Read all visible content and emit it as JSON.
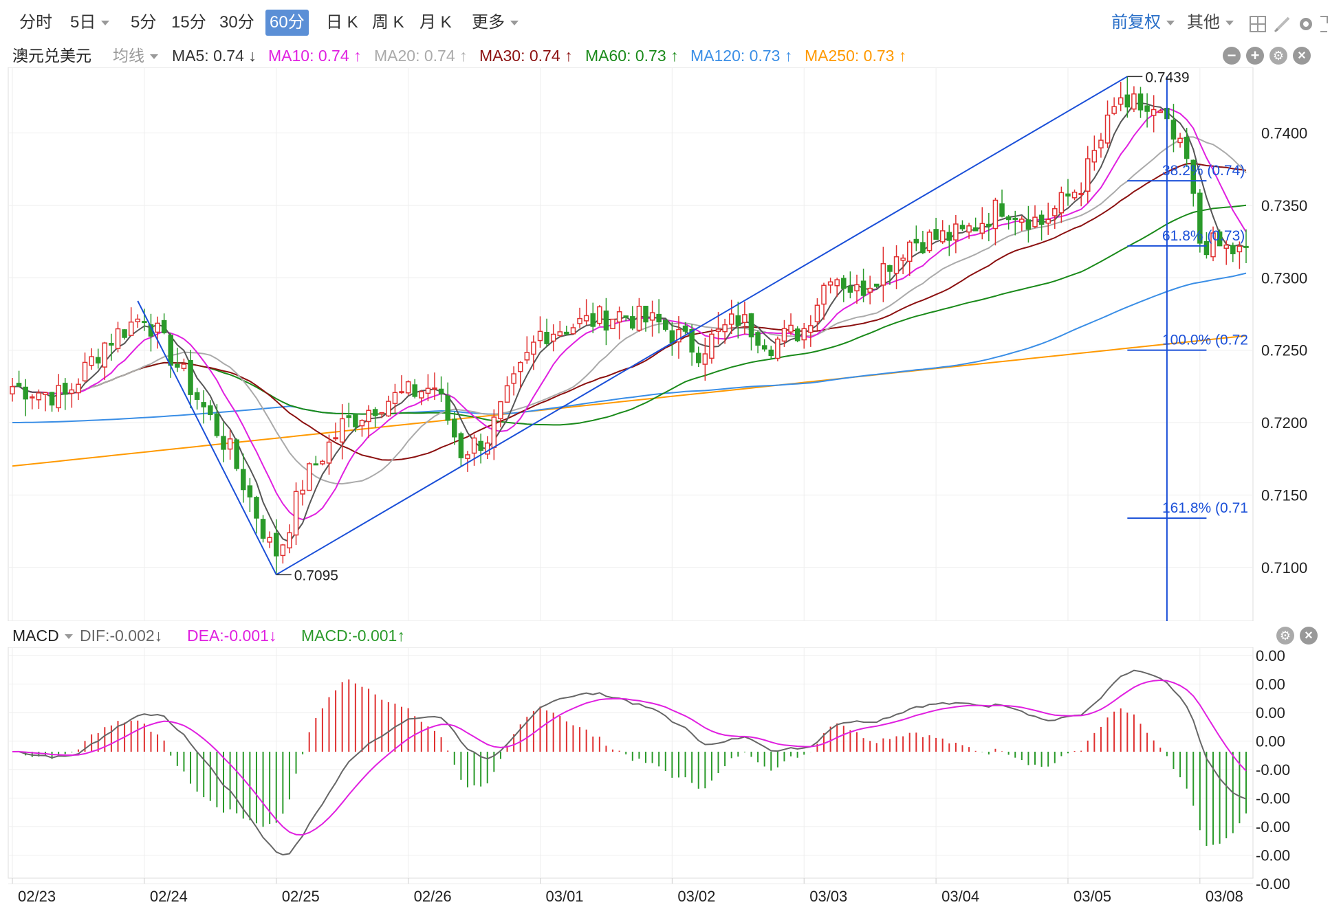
{
  "toolbar": {
    "tabs": [
      {
        "label": "分时",
        "active": false
      },
      {
        "label": "5日",
        "active": false,
        "dropdown": true
      },
      {
        "label": "5分",
        "active": false
      },
      {
        "label": "15分",
        "active": false
      },
      {
        "label": "30分",
        "active": false
      },
      {
        "label": "60分",
        "active": true
      },
      {
        "label": "日 K",
        "active": false
      },
      {
        "label": "周 K",
        "active": false
      },
      {
        "label": "月 K",
        "active": false
      },
      {
        "label": "更多",
        "active": false,
        "dropdown": true
      }
    ],
    "adjust_label": "前复权",
    "other_label": "其他",
    "icons": [
      "grid-icon",
      "pen-icon",
      "settings-icon",
      "expand-icon"
    ]
  },
  "legend": {
    "symbol": "澳元兑美元",
    "ma_type": "均线",
    "items": [
      {
        "label": "MA5: 0.74 ↓",
        "color": "#333333"
      },
      {
        "label": "MA10: 0.74 ↑",
        "color": "#e020e0"
      },
      {
        "label": "MA20: 0.74 ↑",
        "color": "#aaaaaa"
      },
      {
        "label": "MA30: 0.74 ↑",
        "color": "#8b1010"
      },
      {
        "label": "MA60: 0.73 ↑",
        "color": "#1a8a1a"
      },
      {
        "label": "MA120: 0.73 ↑",
        "color": "#3a8ee6"
      },
      {
        "label": "MA250: 0.73 ↑",
        "color": "#ff9900"
      }
    ]
  },
  "macd_legend": {
    "name": "MACD",
    "items": [
      {
        "label": "DIF:-0.002↓",
        "color": "#666666"
      },
      {
        "label": "DEA:-0.001↓",
        "color": "#e020e0"
      },
      {
        "label": "MACD:-0.001↑",
        "color": "#2a9a2a"
      }
    ]
  },
  "colors": {
    "up": "#e03030",
    "down": "#2a9a2a",
    "fib": "#1a4fd8",
    "grid": "#eeeeee"
  },
  "chart_data": [
    {
      "type": "candlestick",
      "title": "澳元兑美元",
      "timeframe": "60分",
      "ylim": [
        0.71,
        0.745
      ],
      "y_ticks": [
        "0.7100",
        "0.7150",
        "0.7200",
        "0.7250",
        "0.7300",
        "0.7350",
        "0.7400"
      ],
      "x_ticks": [
        "02/23",
        "02/24",
        "02/25",
        "02/26",
        "03/01",
        "03/02",
        "03/03",
        "03/04",
        "03/05",
        "03/08"
      ],
      "x_tick_index": [
        0,
        20,
        40,
        60,
        80,
        100,
        120,
        140,
        160,
        180
      ],
      "n_bars": 188,
      "close_anchors": [
        [
          0,
          0.7225
        ],
        [
          8,
          0.7218
        ],
        [
          14,
          0.7255
        ],
        [
          20,
          0.7275
        ],
        [
          27,
          0.7225
        ],
        [
          33,
          0.718
        ],
        [
          40,
          0.7105
        ],
        [
          44,
          0.7158
        ],
        [
          50,
          0.7198
        ],
        [
          56,
          0.7215
        ],
        [
          64,
          0.7225
        ],
        [
          68,
          0.718
        ],
        [
          72,
          0.719
        ],
        [
          80,
          0.7262
        ],
        [
          92,
          0.7275
        ],
        [
          98,
          0.7268
        ],
        [
          104,
          0.725
        ],
        [
          110,
          0.7272
        ],
        [
          115,
          0.7255
        ],
        [
          120,
          0.7265
        ],
        [
          124,
          0.7305
        ],
        [
          128,
          0.729
        ],
        [
          136,
          0.7325
        ],
        [
          144,
          0.733
        ],
        [
          150,
          0.735
        ],
        [
          156,
          0.7338
        ],
        [
          162,
          0.7365
        ],
        [
          168,
          0.7425
        ],
        [
          174,
          0.741
        ],
        [
          178,
          0.738
        ],
        [
          180,
          0.7325
        ],
        [
          187,
          0.7316
        ]
      ],
      "annotations": [
        {
          "label": "0.7439",
          "index": 169,
          "value": 0.7439
        },
        {
          "label": "0.7095",
          "index": 40,
          "value": 0.7095
        }
      ],
      "trendlines": [
        [
          [
            19,
            0.7284
          ],
          [
            40,
            0.7095
          ]
        ],
        [
          [
            40,
            0.7095
          ],
          [
            169,
            0.7439
          ]
        ]
      ],
      "fibonacci": [
        {
          "label": "38.2% (0.74)",
          "value": 0.7367
        },
        {
          "label": "61.8% (0.73)",
          "value": 0.7322
        },
        {
          "label": "100.0% (0.72",
          "value": 0.725
        },
        {
          "label": "161.8% (0.71",
          "value": 0.7134
        }
      ],
      "moving_averages": [
        "MA5",
        "MA10",
        "MA20",
        "MA30",
        "MA60",
        "MA120",
        "MA250"
      ],
      "ma250_start": 0.717,
      "ma250_end": 0.726
    },
    {
      "type": "macd",
      "y_ticks": [
        "0.00",
        "0.00",
        "0.00",
        "0.00",
        "-0.00",
        "-0.00",
        "-0.00",
        "-0.00",
        "-0.00"
      ],
      "series": [
        "DIF",
        "DEA",
        "MACD"
      ],
      "last": {
        "DIF": -0.002,
        "DEA": -0.001,
        "MACD": -0.001
      }
    }
  ]
}
